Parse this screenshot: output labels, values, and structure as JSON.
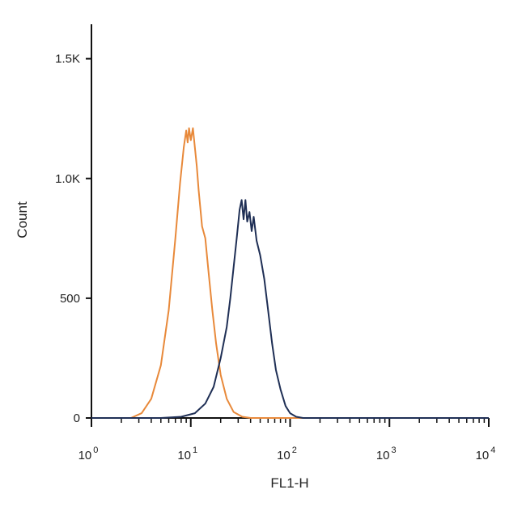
{
  "chart_data": {
    "type": "line",
    "title": "",
    "xlabel": "FL1-H",
    "ylabel": "Count",
    "x_scale": "log",
    "xlim": [
      1,
      10000
    ],
    "ylim": [
      0,
      1600
    ],
    "grid": false,
    "x_ticks": [
      {
        "value": 1,
        "base": "10",
        "exp": "0"
      },
      {
        "value": 10,
        "base": "10",
        "exp": "1"
      },
      {
        "value": 100,
        "base": "10",
        "exp": "2"
      },
      {
        "value": 1000,
        "base": "10",
        "exp": "3"
      },
      {
        "value": 10000,
        "base": "10",
        "exp": "4"
      }
    ],
    "y_ticks": [
      {
        "value": 0,
        "label": "0"
      },
      {
        "value": 500,
        "label": "500"
      },
      {
        "value": 1000,
        "label": "1.0K"
      },
      {
        "value": 1500,
        "label": "1.5K"
      }
    ],
    "series": [
      {
        "color": "#e8893a",
        "points": [
          [
            1,
            0
          ],
          [
            2.5,
            0
          ],
          [
            3.2,
            20
          ],
          [
            4,
            80
          ],
          [
            5,
            220
          ],
          [
            6,
            450
          ],
          [
            7,
            750
          ],
          [
            7.8,
            980
          ],
          [
            8.5,
            1130
          ],
          [
            9,
            1200
          ],
          [
            9.3,
            1150
          ],
          [
            9.6,
            1210
          ],
          [
            10,
            1160
          ],
          [
            10.5,
            1210
          ],
          [
            11,
            1130
          ],
          [
            11.5,
            1050
          ],
          [
            12,
            950
          ],
          [
            13,
            800
          ],
          [
            14,
            750
          ],
          [
            15,
            620
          ],
          [
            16.5,
            450
          ],
          [
            18,
            310
          ],
          [
            20,
            180
          ],
          [
            23,
            80
          ],
          [
            27,
            25
          ],
          [
            33,
            5
          ],
          [
            40,
            0
          ],
          [
            10000,
            0
          ]
        ]
      },
      {
        "color": "#1f2f55",
        "points": [
          [
            1,
            0
          ],
          [
            5,
            0
          ],
          [
            8,
            5
          ],
          [
            11,
            20
          ],
          [
            14,
            60
          ],
          [
            17,
            130
          ],
          [
            20,
            250
          ],
          [
            23,
            380
          ],
          [
            25,
            500
          ],
          [
            27,
            630
          ],
          [
            29,
            750
          ],
          [
            31,
            870
          ],
          [
            32.5,
            910
          ],
          [
            34,
            830
          ],
          [
            35.5,
            910
          ],
          [
            37,
            820
          ],
          [
            39,
            860
          ],
          [
            41,
            780
          ],
          [
            43,
            840
          ],
          [
            46,
            740
          ],
          [
            50,
            680
          ],
          [
            55,
            580
          ],
          [
            60,
            450
          ],
          [
            66,
            310
          ],
          [
            72,
            200
          ],
          [
            80,
            120
          ],
          [
            90,
            50
          ],
          [
            100,
            20
          ],
          [
            115,
            5
          ],
          [
            135,
            0
          ],
          [
            10000,
            0
          ]
        ]
      }
    ]
  }
}
